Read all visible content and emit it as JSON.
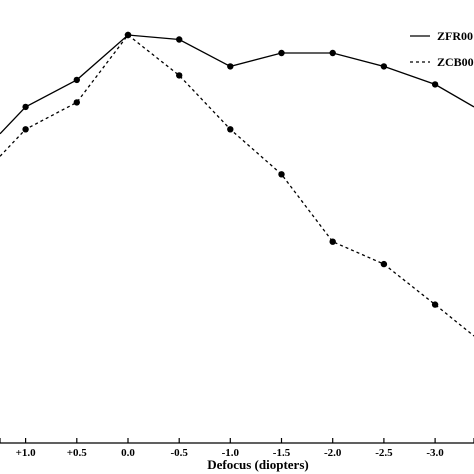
{
  "chart_data": {
    "type": "line",
    "title": "",
    "xlabel": "Defocus (diopters)",
    "ylabel": "",
    "x_reversed": true,
    "x": [
      1.0,
      0.5,
      0.0,
      -0.5,
      -1.0,
      -1.5,
      -2.0,
      -2.5,
      -3.0
    ],
    "x_tick_labels": [
      "+1.0",
      "+0.5",
      "0.0",
      "-0.5",
      "-1.0",
      "-1.5",
      "-2.0",
      "-2.5",
      "-3.0"
    ],
    "xlim": [
      1.25,
      -3.38
    ],
    "ylim": [
      0,
      1
    ],
    "legend_position": "top-right",
    "series": [
      {
        "name": "ZFR00",
        "style": "solid",
        "values": [
          0.79,
          0.85,
          0.95,
          0.94,
          0.88,
          0.91,
          0.91,
          0.88,
          0.84
        ],
        "x_extra_left": 1.25,
        "value_extra_left": 0.73,
        "x_extra_right": -3.38,
        "value_extra_right": 0.79
      },
      {
        "name": "ZCB00",
        "style": "dashed",
        "values": [
          0.74,
          0.8,
          0.95,
          0.86,
          0.74,
          0.64,
          0.49,
          0.44,
          0.35
        ],
        "x_extra_left": 1.25,
        "value_extra_left": 0.68,
        "x_extra_right": -3.38,
        "value_extra_right": 0.28
      }
    ]
  }
}
